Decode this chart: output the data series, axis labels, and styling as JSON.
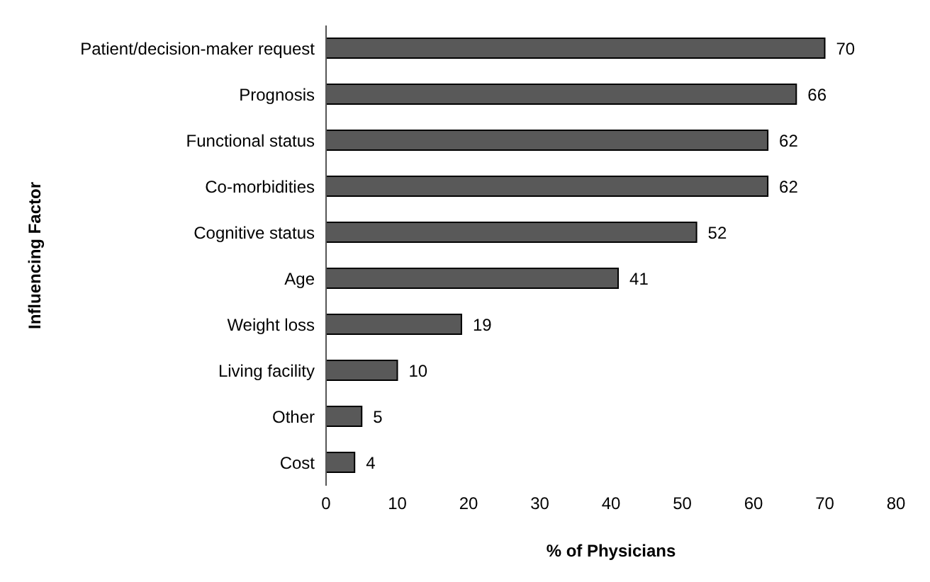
{
  "chart_data": {
    "type": "bar",
    "orientation": "horizontal",
    "xlabel": "% of Physicians",
    "ylabel": "Influencing Factor",
    "categories": [
      "Patient/decision-maker request",
      "Prognosis",
      "Functional status",
      "Co-morbidities",
      "Cognitive status",
      "Age",
      "Weight loss",
      "Living facility",
      "Other",
      "Cost"
    ],
    "values": [
      70,
      66,
      62,
      62,
      52,
      41,
      19,
      10,
      5,
      4
    ],
    "color": "#595959",
    "xlim": [
      0,
      80
    ],
    "xticks": [
      0,
      10,
      20,
      30,
      40,
      50,
      60,
      70,
      80
    ],
    "grid": false,
    "data_labels": true
  }
}
